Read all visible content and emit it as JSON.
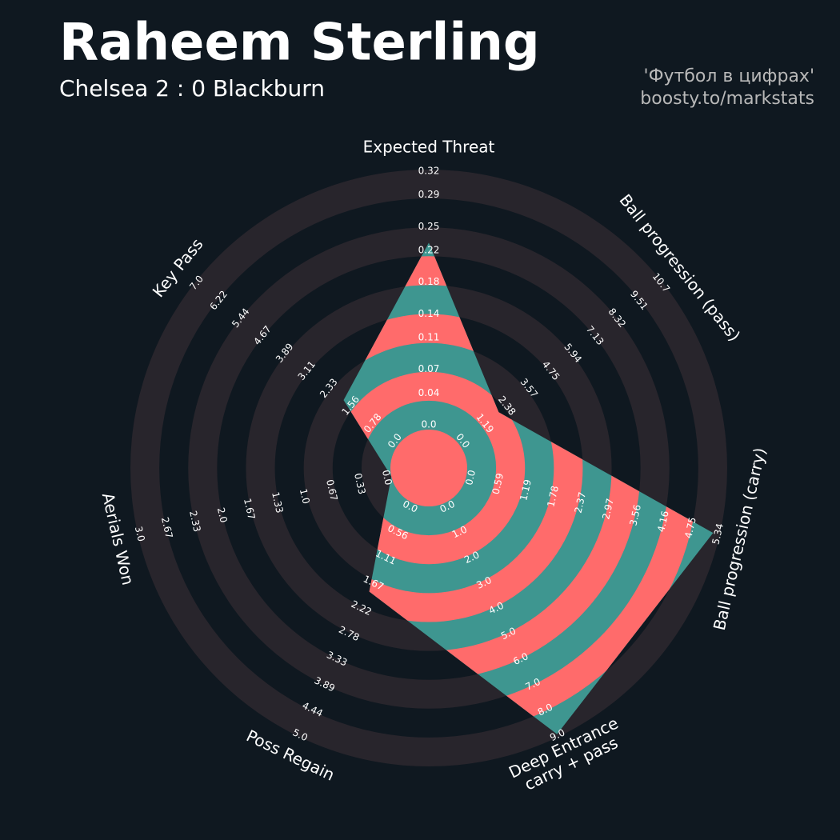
{
  "chart_data": {
    "type": "radar",
    "title": "Raheem Sterling",
    "subtitle": "Chelsea 2 : 0 Blackburn",
    "credits": [
      "'Футбол в цифрах'",
      "boosty.to/markstats"
    ],
    "params": [
      "Expected Threat",
      "Ball progression (pass)",
      "Ball progression (carry)",
      "Deep Entrance\ncarry + pass",
      "Poss Regain",
      "Aerials Won",
      "Key Pass"
    ],
    "values": [
      0.23,
      2.1,
      5.2,
      8.9,
      1.9,
      0,
      1.9
    ],
    "rlims": [
      [
        0,
        0.32
      ],
      [
        0,
        10.7
      ],
      [
        0,
        5.34
      ],
      [
        0,
        9
      ],
      [
        0,
        5
      ],
      [
        0,
        3
      ],
      [
        0,
        7
      ]
    ],
    "ticks": [
      [
        {
          "value": 0,
          "label": "0.0"
        },
        0.04,
        0.07,
        0.11,
        0.14,
        0.18,
        0.22,
        0.25,
        0.29,
        0.32
      ],
      [
        {
          "value": 0,
          "label": "0.0"
        },
        1.19,
        2.38,
        3.57,
        4.75,
        5.94,
        7.13,
        8.32,
        9.51,
        10.7
      ],
      [
        {
          "value": 0,
          "label": "0.0"
        },
        0.59,
        1.19,
        1.78,
        2.37,
        2.97,
        3.56,
        4.16,
        4.75,
        5.34
      ],
      [
        {
          "value": 0,
          "label": "0.0"
        },
        {
          "value": 1,
          "label": "1.0"
        },
        {
          "value": 2,
          "label": "2.0"
        },
        {
          "value": 3,
          "label": "3.0"
        },
        {
          "value": 4,
          "label": "4.0"
        },
        {
          "value": 5,
          "label": "5.0"
        },
        {
          "value": 6,
          "label": "6.0"
        },
        {
          "value": 7,
          "label": "7.0"
        },
        {
          "value": 8,
          "label": "8.0"
        },
        {
          "value": 9,
          "label": "9.0"
        }
      ],
      [
        {
          "value": 0,
          "label": "0.0"
        },
        0.56,
        1.11,
        1.67,
        2.22,
        2.78,
        3.33,
        3.89,
        4.44,
        {
          "value": 5,
          "label": "5.0"
        }
      ],
      [
        {
          "value": 0,
          "label": "0.0"
        },
        0.33,
        0.67,
        {
          "value": 1,
          "label": "1.0"
        },
        1.33,
        1.67,
        {
          "value": 2,
          "label": "2.0"
        },
        2.33,
        2.67,
        {
          "value": 3,
          "label": "3.0"
        }
      ],
      [
        {
          "value": 0,
          "label": "0.0"
        },
        0.78,
        1.56,
        2.33,
        3.11,
        3.89,
        4.67,
        5.44,
        6.22,
        {
          "value": 7,
          "label": "7.0"
        }
      ]
    ],
    "color": "#3e9690",
    "alt_color": "#ff6b6b",
    "ring_color": "#28252c",
    "background": "#0f1820"
  }
}
